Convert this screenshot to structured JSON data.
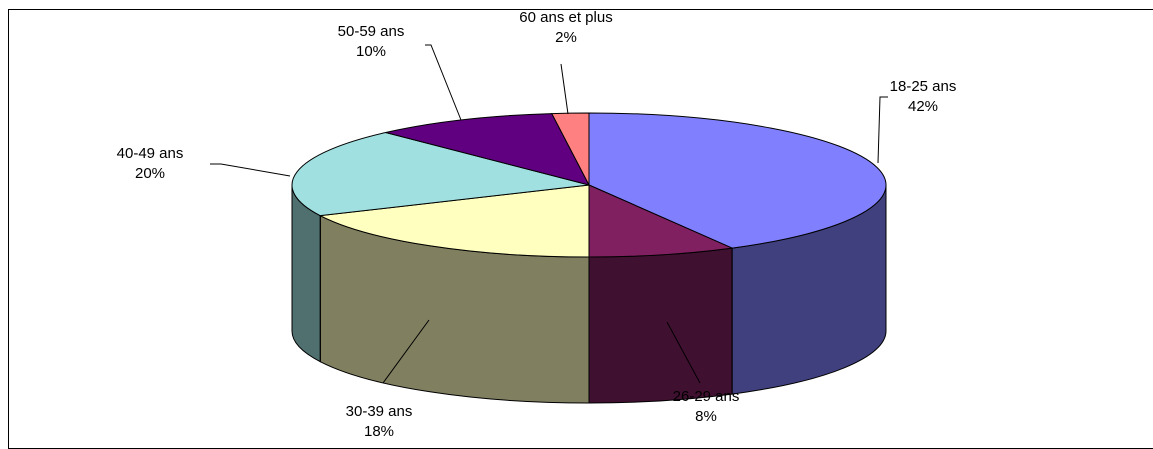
{
  "chart_data": {
    "type": "pie",
    "variant": "3d",
    "categories": [
      "18-25 ans",
      "26-29 ans",
      "30-39 ans",
      "40-49 ans",
      "50-59 ans",
      "60 ans et plus"
    ],
    "values": [
      42,
      8,
      18,
      20,
      10,
      2
    ],
    "value_labels": [
      "42%",
      "8%",
      "18%",
      "20%",
      "10%",
      "2%"
    ],
    "colors": {
      "top": [
        "#8080ff",
        "#802060",
        "#ffffc0",
        "#a0e0e0",
        "#600080",
        "#ff8080"
      ],
      "side": [
        "#40407f",
        "#401030",
        "#807f60",
        "#507070",
        "#300040",
        "#804040"
      ]
    },
    "legend": "none",
    "title": ""
  }
}
